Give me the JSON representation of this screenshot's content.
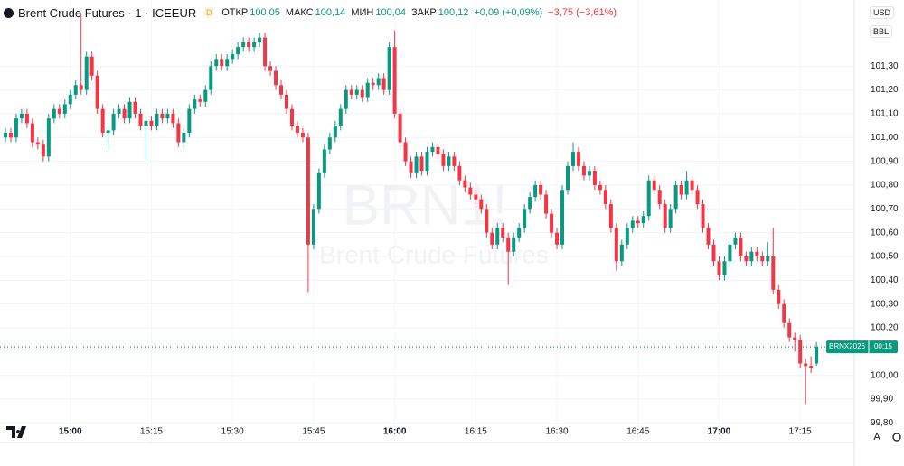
{
  "chart_data": {
    "type": "candlestick",
    "title": "Brent Crude Futures · 1 · ICEEUR",
    "interval_badge": "D",
    "header_items": [
      {
        "label": "ОТКР",
        "value": "100,05"
      },
      {
        "label": "МАКС",
        "value": "100,14"
      },
      {
        "label": "МИН",
        "value": "100,04"
      },
      {
        "label": "ЗАКР",
        "value": "100,12"
      }
    ],
    "change": "+0,09 (+0,09%)",
    "day_change": "−3,75 (−3,61%)",
    "currency": "USD",
    "unit": "BBL",
    "watermark": "BRN1!",
    "watermark_subtitle": "Brent Crude Futures",
    "price_tag": "BRNX2026",
    "countdown": "00:15",
    "scale_mode": "A",
    "up_color": "#089981",
    "down_color": "#f23645",
    "grid": true,
    "x": [
      "14:48",
      "14:49",
      "14:50",
      "14:51",
      "14:52",
      "14:53",
      "14:54",
      "14:55",
      "14:56",
      "14:57",
      "14:58",
      "14:59",
      "15:00",
      "15:01",
      "15:02",
      "15:03",
      "15:04",
      "15:05",
      "15:06",
      "15:07",
      "15:08",
      "15:09",
      "15:10",
      "15:11",
      "15:12",
      "15:13",
      "15:14",
      "15:15",
      "15:16",
      "15:17",
      "15:18",
      "15:19",
      "15:20",
      "15:21",
      "15:22",
      "15:23",
      "15:24",
      "15:25",
      "15:26",
      "15:27",
      "15:28",
      "15:29",
      "15:30",
      "15:31",
      "15:32",
      "15:33",
      "15:34",
      "15:35",
      "15:36",
      "15:37",
      "15:38",
      "15:39",
      "15:40",
      "15:41",
      "15:42",
      "15:43",
      "15:44",
      "15:45",
      "15:46",
      "15:47",
      "15:48",
      "15:49",
      "15:50",
      "15:51",
      "15:52",
      "15:53",
      "15:54",
      "15:55",
      "15:56",
      "15:57",
      "15:58",
      "15:59",
      "16:00",
      "16:01",
      "16:02",
      "16:03",
      "16:04",
      "16:05",
      "16:06",
      "16:07",
      "16:08",
      "16:09",
      "16:10",
      "16:11",
      "16:12",
      "16:13",
      "16:14",
      "16:15",
      "16:16",
      "16:17",
      "16:18",
      "16:19",
      "16:20",
      "16:21",
      "16:22",
      "16:23",
      "16:24",
      "16:25",
      "16:26",
      "16:27",
      "16:28",
      "16:29",
      "16:30",
      "16:31",
      "16:32",
      "16:33",
      "16:34",
      "16:35",
      "16:36",
      "16:37",
      "16:38",
      "16:39",
      "16:40",
      "16:41",
      "16:42",
      "16:43",
      "16:44",
      "16:45",
      "16:46",
      "16:47",
      "16:48",
      "16:49",
      "16:50",
      "16:51",
      "16:52",
      "16:53",
      "16:54",
      "16:55",
      "16:56",
      "16:57",
      "16:58",
      "16:59",
      "17:00",
      "17:01",
      "17:02",
      "17:03",
      "17:04",
      "17:05",
      "17:06",
      "17:07",
      "17:08",
      "17:09",
      "17:10",
      "17:11",
      "17:12",
      "17:13",
      "17:14",
      "17:15",
      "17:16",
      "17:17",
      "17:18"
    ],
    "open": [
      101.0,
      101.02,
      101.0,
      101.08,
      101.1,
      101.06,
      100.98,
      100.97,
      100.92,
      101.08,
      101.12,
      101.1,
      101.14,
      101.18,
      101.22,
      101.2,
      101.34,
      101.26,
      101.12,
      101.02,
      101.03,
      101.1,
      101.12,
      101.08,
      101.15,
      101.1,
      101.05,
      101.07,
      101.05,
      101.1,
      101.08,
      101.1,
      101.06,
      100.98,
      101.02,
      101.12,
      101.16,
      101.15,
      101.2,
      101.3,
      101.33,
      101.3,
      101.33,
      101.35,
      101.38,
      101.4,
      101.38,
      101.4,
      101.42,
      101.3,
      101.28,
      101.22,
      101.18,
      101.12,
      101.05,
      101.02,
      101.0,
      100.55,
      100.7,
      100.85,
      100.95,
      101.0,
      101.05,
      101.12,
      101.2,
      101.18,
      101.2,
      101.17,
      101.23,
      101.22,
      101.25,
      101.2,
      101.38,
      101.1,
      100.98,
      100.9,
      100.85,
      100.92,
      100.86,
      100.94,
      100.96,
      100.93,
      100.88,
      100.92,
      100.88,
      100.82,
      100.79,
      100.76,
      100.74,
      100.7,
      100.6,
      100.55,
      100.62,
      100.58,
      100.52,
      100.58,
      100.62,
      100.7,
      100.75,
      100.8,
      100.76,
      100.68,
      100.6,
      100.55,
      100.78,
      100.88,
      100.94,
      100.88,
      100.84,
      100.86,
      100.8,
      100.78,
      100.72,
      100.62,
      100.48,
      100.55,
      100.62,
      100.65,
      100.64,
      100.67,
      100.82,
      100.78,
      100.72,
      100.62,
      100.7,
      100.8,
      100.76,
      100.82,
      100.78,
      100.72,
      100.62,
      100.55,
      100.48,
      100.42,
      100.48,
      100.55,
      100.58,
      100.5,
      100.48,
      100.52,
      100.5,
      100.48,
      100.5,
      100.36,
      100.3,
      100.22,
      100.16,
      100.15,
      100.05,
      100.04,
      100.05
    ],
    "high": [
      101.04,
      101.04,
      101.1,
      101.12,
      101.12,
      101.08,
      101.0,
      100.99,
      101.1,
      101.14,
      101.14,
      101.16,
      101.2,
      101.24,
      101.52,
      101.36,
      101.36,
      101.28,
      101.14,
      101.05,
      101.12,
      101.14,
      101.14,
      101.17,
      101.17,
      101.12,
      101.09,
      101.09,
      101.12,
      101.12,
      101.12,
      101.12,
      101.08,
      101.04,
      101.14,
      101.18,
      101.18,
      101.22,
      101.32,
      101.35,
      101.35,
      101.35,
      101.37,
      101.4,
      101.42,
      101.42,
      101.42,
      101.44,
      101.44,
      101.32,
      101.3,
      101.24,
      101.2,
      101.14,
      101.07,
      101.04,
      101.02,
      100.72,
      100.87,
      100.97,
      101.02,
      101.07,
      101.14,
      101.22,
      101.22,
      101.22,
      101.22,
      101.25,
      101.25,
      101.27,
      101.27,
      101.4,
      101.45,
      101.12,
      101.0,
      100.92,
      100.94,
      100.94,
      100.96,
      100.98,
      100.98,
      100.95,
      100.94,
      100.94,
      100.9,
      100.84,
      100.81,
      100.78,
      100.76,
      100.72,
      100.62,
      100.64,
      100.64,
      100.6,
      100.6,
      100.64,
      100.72,
      100.77,
      100.82,
      100.82,
      100.78,
      100.7,
      100.62,
      100.8,
      100.9,
      100.98,
      100.96,
      100.9,
      100.88,
      100.88,
      100.82,
      100.8,
      100.74,
      100.64,
      100.57,
      100.64,
      100.67,
      100.67,
      100.69,
      100.84,
      100.84,
      100.8,
      100.74,
      100.72,
      100.82,
      100.82,
      100.86,
      100.84,
      100.8,
      100.74,
      100.64,
      100.57,
      100.5,
      100.5,
      100.57,
      100.6,
      100.6,
      100.52,
      100.54,
      100.54,
      100.52,
      100.56,
      100.62,
      100.38,
      100.32,
      100.24,
      100.18,
      100.17,
      100.07,
      100.08,
      100.14
    ],
    "low": [
      100.98,
      100.98,
      100.98,
      101.06,
      101.04,
      100.96,
      100.95,
      100.9,
      100.9,
      101.06,
      101.08,
      101.08,
      101.12,
      101.16,
      101.18,
      101.18,
      101.24,
      101.1,
      101.0,
      100.95,
      101.01,
      101.08,
      101.06,
      101.06,
      101.08,
      101.03,
      100.9,
      101.03,
      101.03,
      101.06,
      101.06,
      101.04,
      100.96,
      100.96,
      101.0,
      101.1,
      101.13,
      101.13,
      101.18,
      101.28,
      101.28,
      101.28,
      101.31,
      101.33,
      101.36,
      101.36,
      101.36,
      101.38,
      101.28,
      101.26,
      101.2,
      101.16,
      101.1,
      101.03,
      101.0,
      100.98,
      100.35,
      100.53,
      100.68,
      100.83,
      100.93,
      100.98,
      101.03,
      101.1,
      101.16,
      101.16,
      101.15,
      101.15,
      101.2,
      101.2,
      101.18,
      101.18,
      101.08,
      100.96,
      100.88,
      100.83,
      100.83,
      100.84,
      100.84,
      100.92,
      100.91,
      100.86,
      100.86,
      100.86,
      100.8,
      100.77,
      100.74,
      100.72,
      100.68,
      100.58,
      100.53,
      100.53,
      100.56,
      100.38,
      100.5,
      100.56,
      100.6,
      100.68,
      100.73,
      100.74,
      100.66,
      100.58,
      100.53,
      100.53,
      100.76,
      100.86,
      100.86,
      100.82,
      100.82,
      100.78,
      100.76,
      100.7,
      100.6,
      100.44,
      100.46,
      100.53,
      100.6,
      100.62,
      100.62,
      100.65,
      100.76,
      100.7,
      100.6,
      100.6,
      100.68,
      100.74,
      100.74,
      100.76,
      100.7,
      100.6,
      100.53,
      100.46,
      100.4,
      100.4,
      100.46,
      100.53,
      100.48,
      100.46,
      100.46,
      100.48,
      100.46,
      100.46,
      100.34,
      100.28,
      100.2,
      100.14,
      100.1,
      100.03,
      99.88,
      100.01,
      100.04
    ],
    "close": [
      101.02,
      101.0,
      101.08,
      101.1,
      101.06,
      100.98,
      100.97,
      100.92,
      101.08,
      101.12,
      101.1,
      101.14,
      101.18,
      101.22,
      101.2,
      101.34,
      101.26,
      101.12,
      101.02,
      101.03,
      101.1,
      101.12,
      101.08,
      101.15,
      101.1,
      101.05,
      101.07,
      101.05,
      101.1,
      101.08,
      101.1,
      101.06,
      100.98,
      101.02,
      101.12,
      101.16,
      101.15,
      101.2,
      101.3,
      101.33,
      101.3,
      101.33,
      101.35,
      101.38,
      101.4,
      101.38,
      101.4,
      101.42,
      101.3,
      101.28,
      101.22,
      101.18,
      101.12,
      101.05,
      101.02,
      101.0,
      100.55,
      100.7,
      100.85,
      100.95,
      101.0,
      101.05,
      101.12,
      101.2,
      101.18,
      101.2,
      101.17,
      101.23,
      101.22,
      101.25,
      101.2,
      101.38,
      101.1,
      100.98,
      100.9,
      100.85,
      100.92,
      100.86,
      100.94,
      100.96,
      100.93,
      100.88,
      100.92,
      100.88,
      100.82,
      100.79,
      100.76,
      100.74,
      100.7,
      100.6,
      100.55,
      100.62,
      100.58,
      100.52,
      100.58,
      100.62,
      100.7,
      100.75,
      100.8,
      100.76,
      100.68,
      100.6,
      100.55,
      100.78,
      100.88,
      100.94,
      100.88,
      100.84,
      100.86,
      100.8,
      100.78,
      100.72,
      100.62,
      100.48,
      100.55,
      100.62,
      100.65,
      100.64,
      100.67,
      100.82,
      100.78,
      100.72,
      100.62,
      100.7,
      100.8,
      100.76,
      100.82,
      100.78,
      100.72,
      100.62,
      100.55,
      100.48,
      100.42,
      100.48,
      100.55,
      100.58,
      100.5,
      100.48,
      100.52,
      100.5,
      100.48,
      100.5,
      100.36,
      100.3,
      100.22,
      100.16,
      100.15,
      100.05,
      100.04,
      100.03,
      100.12
    ],
    "xlim": [
      "14:47",
      "17:25"
    ],
    "xticks": [
      "15:00",
      "15:15",
      "15:30",
      "15:45",
      "16:00",
      "16:15",
      "16:30",
      "16:45",
      "17:00",
      "17:15"
    ],
    "ylim": [
      99.718,
      101.578
    ],
    "yticks": [
      {
        "value": 101.3,
        "label": "101,30"
      },
      {
        "value": 101.2,
        "label": "101,20"
      },
      {
        "value": 101.1,
        "label": "101,10"
      },
      {
        "value": 101.0,
        "label": "101,00"
      },
      {
        "value": 100.9,
        "label": "100,90"
      },
      {
        "value": 100.8,
        "label": "100,80"
      },
      {
        "value": 100.7,
        "label": "100,70"
      },
      {
        "value": 100.6,
        "label": "100,60"
      },
      {
        "value": 100.5,
        "label": "100,50"
      },
      {
        "value": 100.4,
        "label": "100,40"
      },
      {
        "value": 100.3,
        "label": "100,30"
      },
      {
        "value": 100.2,
        "label": "100,20"
      },
      {
        "value": 100.0,
        "label": "100,00"
      },
      {
        "value": 99.9,
        "label": "99,90"
      },
      {
        "value": 99.8,
        "label": "99,80"
      }
    ]
  }
}
